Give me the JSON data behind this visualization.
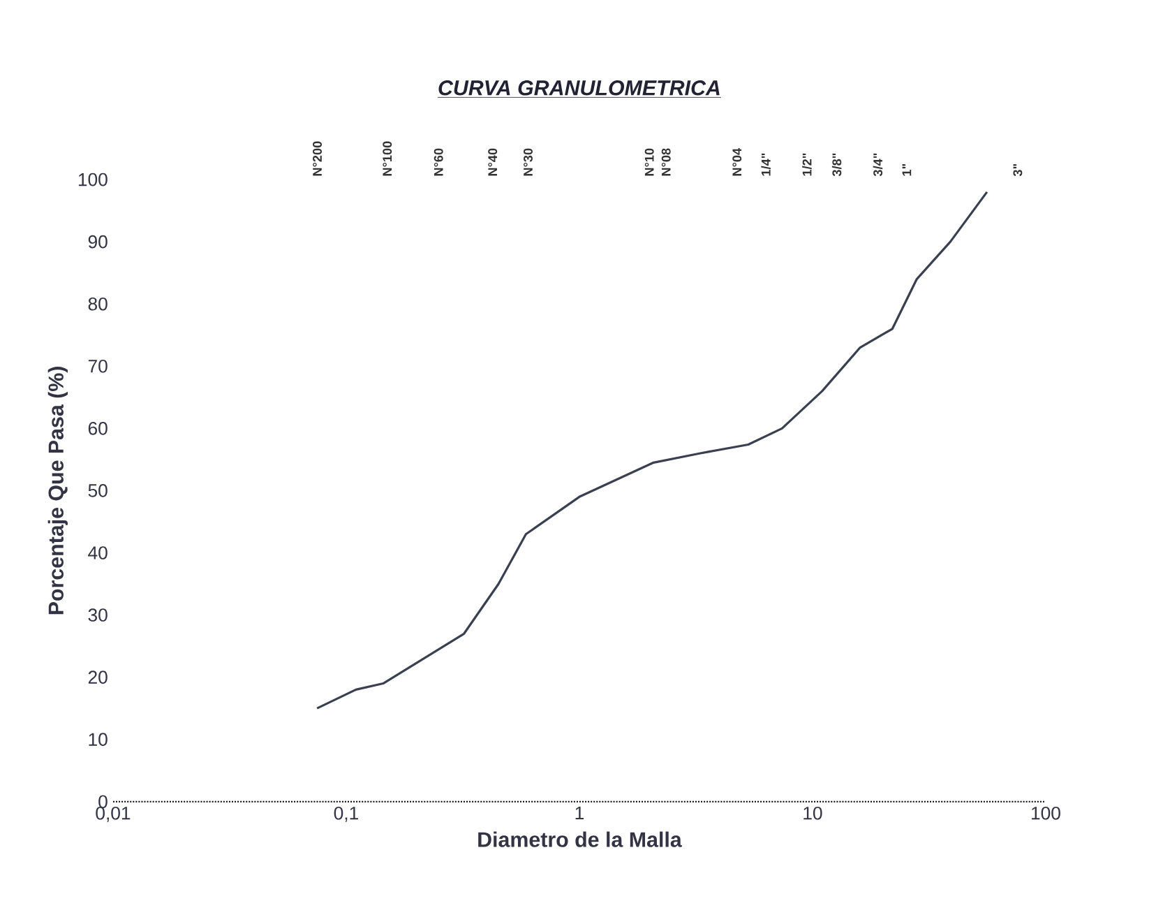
{
  "chart_data": {
    "type": "line",
    "title": "CURVA GRANULOMETRICA",
    "xlabel": "Diametro de la Malla",
    "ylabel": "Porcentaje Que Pasa (%)",
    "log": "x",
    "grid": false,
    "marker": "none",
    "line_style": "solid",
    "xlim": [
      0.01,
      100
    ],
    "ylim": [
      0,
      100
    ],
    "xticks": [
      {
        "value": 0.01,
        "label": "0,01"
      },
      {
        "value": 0.1,
        "label": "0,1"
      },
      {
        "value": 1,
        "label": "1"
      },
      {
        "value": 10,
        "label": "10"
      },
      {
        "value": 100,
        "label": "100"
      }
    ],
    "yticks": [
      0,
      10,
      20,
      30,
      40,
      50,
      60,
      70,
      80,
      90,
      100
    ],
    "annotations": [
      "N°200",
      "N°100",
      "N°60",
      "N°40",
      "N°30",
      "N°10",
      "N°08",
      "N°04",
      "1/4\"",
      "1/2\"",
      "3/8\"",
      "3/4\"",
      "1\"",
      "3\""
    ],
    "series": [
      {
        "color": "#3a4050",
        "x": [
          0.075,
          0.11,
          0.144,
          0.32,
          0.45,
          0.59,
          1.0,
          2.08,
          3.3,
          5.3,
          7.4,
          11.0,
          16,
          22,
          28,
          39,
          56
        ],
        "values": [
          15,
          18,
          19,
          27,
          35,
          43,
          49,
          54.5,
          56,
          57.4,
          60,
          66,
          73,
          76,
          84,
          90,
          98
        ]
      }
    ]
  }
}
